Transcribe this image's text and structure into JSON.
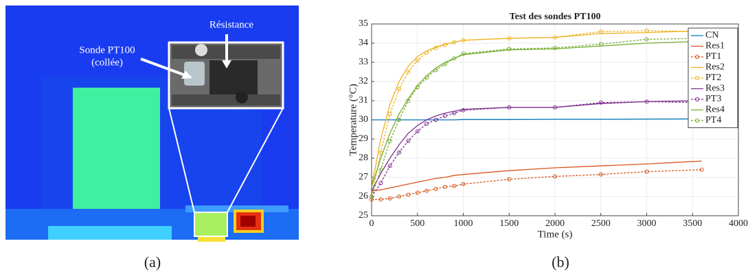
{
  "panel_a": {
    "label": "(a)",
    "annotations": [
      "Résistance",
      "Sonde PT100",
      "(collée)"
    ]
  },
  "chart_data": {
    "type": "line",
    "title": "Test des sondes PT100",
    "caption": "(b)",
    "xlabel": "Time (s)",
    "ylabel": "Temperature (°C)",
    "x": [
      0,
      100,
      200,
      300,
      400,
      500,
      600,
      700,
      800,
      900,
      1000,
      1500,
      2000,
      2500,
      3000,
      3600
    ],
    "xlim": [
      0,
      4000
    ],
    "ylim": [
      25,
      35
    ],
    "xticks": [
      0,
      500,
      1000,
      1500,
      2000,
      2500,
      3000,
      3500,
      4000
    ],
    "yticks": [
      25,
      26,
      27,
      28,
      29,
      30,
      31,
      32,
      33,
      34,
      35
    ],
    "grid": true,
    "legend": "northeast",
    "series": [
      {
        "name": "CN",
        "color": "#0072bd",
        "dashed": false,
        "marker": false,
        "values": [
          30.0,
          30.0,
          30.0,
          30.0,
          30.0,
          30.0,
          30.0,
          30.0,
          30.0,
          30.0,
          30.02,
          30.02,
          30.03,
          30.03,
          30.04,
          30.05
        ]
      },
      {
        "name": "Res1",
        "color": "#d95319",
        "dashed": false,
        "marker": false,
        "values": [
          26.3,
          26.35,
          26.45,
          26.55,
          26.65,
          26.75,
          26.85,
          26.95,
          27.0,
          27.1,
          27.15,
          27.35,
          27.5,
          27.6,
          27.7,
          27.85
        ]
      },
      {
        "name": "PT1",
        "color": "#d95319",
        "dashed": true,
        "marker": true,
        "values": [
          25.85,
          25.85,
          25.9,
          26.0,
          26.1,
          26.2,
          26.3,
          26.4,
          26.5,
          26.55,
          26.65,
          26.9,
          27.05,
          27.15,
          27.3,
          27.4
        ]
      },
      {
        "name": "Res2",
        "color": "#edb120",
        "dashed": false,
        "marker": false,
        "values": [
          26.5,
          29.0,
          30.8,
          32.0,
          32.8,
          33.3,
          33.6,
          33.8,
          33.95,
          34.05,
          34.15,
          34.25,
          34.3,
          34.5,
          34.55,
          34.65
        ]
      },
      {
        "name": "PT2",
        "color": "#edb120",
        "dashed": true,
        "marker": true,
        "values": [
          26.0,
          28.3,
          30.3,
          31.6,
          32.5,
          33.1,
          33.5,
          33.75,
          33.9,
          34.05,
          34.15,
          34.25,
          34.3,
          34.6,
          34.65,
          34.6
        ]
      },
      {
        "name": "Res3",
        "color": "#7e2f8e",
        "dashed": false,
        "marker": false,
        "values": [
          26.3,
          27.2,
          28.0,
          28.7,
          29.3,
          29.7,
          30.0,
          30.2,
          30.35,
          30.45,
          30.55,
          30.65,
          30.65,
          30.85,
          30.95,
          31.0
        ]
      },
      {
        "name": "PT3",
        "color": "#7e2f8e",
        "dashed": true,
        "marker": true,
        "values": [
          26.0,
          26.7,
          27.6,
          28.3,
          28.9,
          29.4,
          29.8,
          30.0,
          30.2,
          30.35,
          30.5,
          30.65,
          30.65,
          30.9,
          30.95,
          30.9
        ]
      },
      {
        "name": "Res4",
        "color": "#77ac30",
        "dashed": false,
        "marker": false,
        "values": [
          26.5,
          28.0,
          29.3,
          30.3,
          31.1,
          31.8,
          32.3,
          32.7,
          33.0,
          33.2,
          33.4,
          33.65,
          33.7,
          33.85,
          34.0,
          34.1
        ]
      },
      {
        "name": "PT4",
        "color": "#77ac30",
        "dashed": true,
        "marker": true,
        "values": [
          26.0,
          27.4,
          28.9,
          30.0,
          31.0,
          31.7,
          32.2,
          32.6,
          32.9,
          33.2,
          33.45,
          33.7,
          33.75,
          33.95,
          34.2,
          34.25
        ]
      }
    ]
  }
}
